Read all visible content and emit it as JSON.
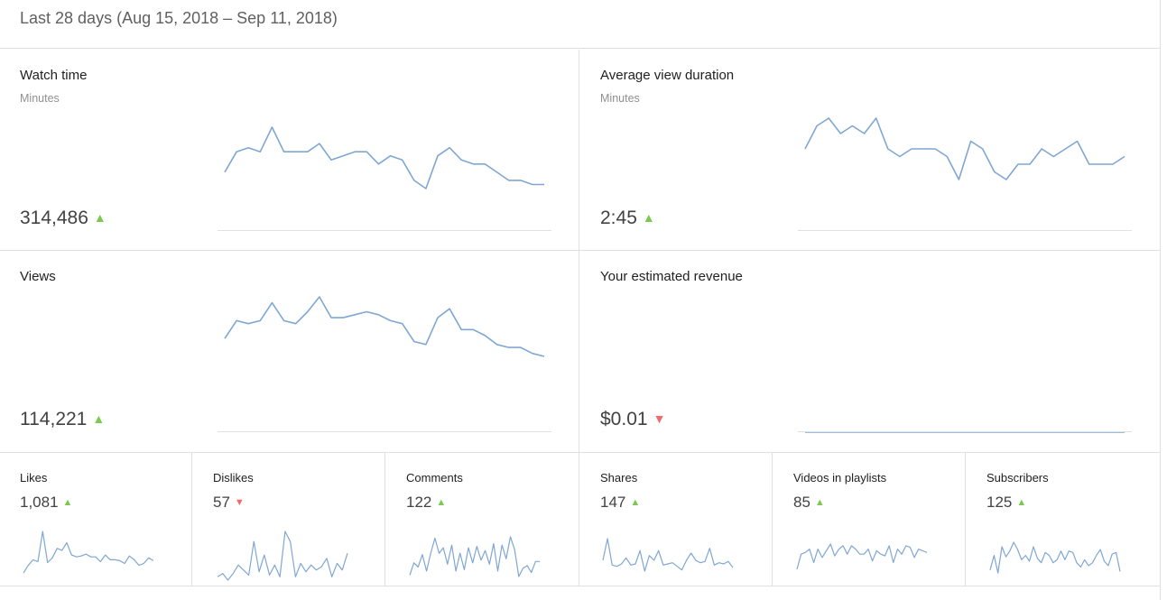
{
  "header": {
    "period": "Last 28 days (Aug 15, 2018 – Sep 11, 2018)"
  },
  "colors": {
    "line": "#7fa7d3",
    "up": "#7cc94f",
    "down": "#ef6c6c",
    "border": "#e0e0e0"
  },
  "cards": [
    {
      "title": "Watch time",
      "subtitle": "Minutes",
      "value": "314,486",
      "trend": "up",
      "series": [
        59,
        64,
        65,
        64,
        70,
        64,
        64,
        64,
        66,
        62,
        63,
        64,
        64,
        61,
        63,
        62,
        57,
        55,
        63,
        65,
        62,
        61,
        61,
        59,
        57,
        57,
        56,
        56
      ]
    },
    {
      "title": "Average view duration",
      "subtitle": "Minutes",
      "value": "2:45",
      "trend": "up",
      "series": [
        68,
        71,
        72,
        70,
        71,
        70,
        72,
        68,
        67,
        68,
        68,
        68,
        67,
        64,
        69,
        68,
        65,
        64,
        66,
        66,
        68,
        67,
        68,
        69,
        66,
        66,
        66,
        67
      ]
    },
    {
      "title": "Views",
      "subtitle": "",
      "value": "114,221",
      "trend": "up",
      "series": [
        60,
        66,
        65,
        66,
        72,
        66,
        65,
        69,
        74,
        67,
        67,
        68,
        69,
        68,
        66,
        65,
        59,
        58,
        67,
        70,
        63,
        63,
        61,
        58,
        57,
        57,
        55,
        54
      ]
    },
    {
      "title": "Your estimated revenue",
      "subtitle": "",
      "value": "$0.01",
      "trend": "down",
      "series": [
        0,
        0,
        0,
        0,
        0,
        0,
        0,
        0,
        0,
        0,
        0,
        0,
        0,
        0,
        0,
        0,
        0,
        0,
        0,
        0,
        0,
        0,
        0,
        0,
        0,
        1,
        0,
        0
      ]
    }
  ],
  "metrics": [
    {
      "title": "Likes",
      "value": "1,081",
      "trend": "up",
      "series": [
        20,
        28,
        34,
        32,
        64,
        31,
        36,
        46,
        44,
        52,
        39,
        37,
        38,
        40,
        37,
        37,
        32,
        39,
        34,
        34,
        33,
        30,
        38,
        34,
        28,
        30,
        36,
        33
      ]
    },
    {
      "title": "Dislikes",
      "value": "57",
      "trend": "down",
      "series": [
        4,
        8,
        0,
        8,
        18,
        12,
        6,
        46,
        10,
        30,
        6,
        18,
        4,
        58,
        46,
        4,
        20,
        10,
        18,
        12,
        16,
        26,
        4,
        20,
        12,
        32
      ]
    },
    {
      "title": "Comments",
      "value": "122",
      "trend": "up",
      "series": [
        4,
        22,
        16,
        34,
        10,
        36,
        58,
        36,
        44,
        20,
        48,
        10,
        36,
        12,
        44,
        22,
        46,
        26,
        40,
        20,
        50,
        10,
        48,
        28,
        60,
        42,
        2,
        14,
        18,
        8,
        24,
        24
      ]
    },
    {
      "title": "Shares",
      "value": "147",
      "trend": "up",
      "series": [
        28,
        64,
        20,
        18,
        22,
        32,
        20,
        22,
        44,
        10,
        36,
        28,
        44,
        20,
        22,
        24,
        18,
        12,
        28,
        40,
        28,
        24,
        26,
        48,
        20,
        24,
        22,
        26,
        16
      ]
    },
    {
      "title": "Videos in playlists",
      "value": "85",
      "trend": "up",
      "series": [
        22,
        40,
        42,
        46,
        30,
        46,
        36,
        44,
        52,
        38,
        46,
        50,
        40,
        50,
        46,
        40,
        40,
        46,
        32,
        44,
        40,
        38,
        50,
        30,
        46,
        40,
        50,
        48,
        36,
        46,
        44,
        42
      ]
    },
    {
      "title": "Subscribers",
      "value": "125",
      "trend": "up",
      "series": [
        20,
        40,
        16,
        52,
        38,
        46,
        58,
        48,
        34,
        40,
        32,
        52,
        36,
        30,
        44,
        40,
        30,
        34,
        46,
        34,
        46,
        44,
        30,
        24,
        34,
        26,
        30,
        40,
        48,
        32,
        26,
        42,
        44,
        18
      ]
    }
  ]
}
